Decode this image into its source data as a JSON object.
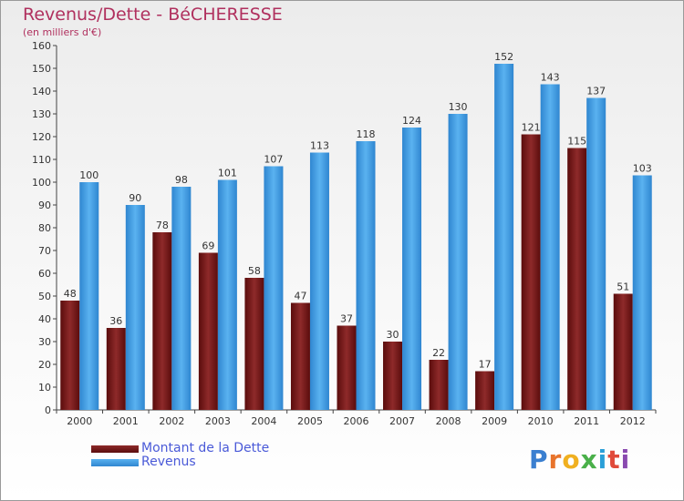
{
  "title": "Revenus/Dette - BéCHERESSE",
  "subtitle": "(en milliers d'€)",
  "brand": {
    "letters": [
      "P",
      "r",
      "o",
      "x",
      "i",
      "t",
      "i"
    ],
    "colors": [
      "#3a7fd0",
      "#e8742c",
      "#f0b020",
      "#4ab04a",
      "#2a9fd8",
      "#e04a3a",
      "#8a4ab0"
    ]
  },
  "chart_data": {
    "type": "bar",
    "categories": [
      "2000",
      "2001",
      "2002",
      "2003",
      "2004",
      "2005",
      "2006",
      "2007",
      "2008",
      "2009",
      "2010",
      "2011",
      "2012"
    ],
    "series": [
      {
        "name": "Montant de la Dette",
        "color": "#7a1a1a",
        "values": [
          48,
          36,
          78,
          69,
          58,
          47,
          37,
          30,
          22,
          17,
          121,
          115,
          51
        ]
      },
      {
        "name": "Revenus",
        "color": "#3a9be6",
        "values": [
          100,
          90,
          98,
          101,
          107,
          113,
          118,
          124,
          130,
          152,
          143,
          137,
          103
        ]
      }
    ],
    "ylim": [
      0,
      160
    ],
    "yticks": [
      0,
      10,
      20,
      30,
      40,
      50,
      60,
      70,
      80,
      90,
      100,
      110,
      120,
      130,
      140,
      150,
      160
    ],
    "grid": false,
    "legend_position": "bottom-left"
  }
}
